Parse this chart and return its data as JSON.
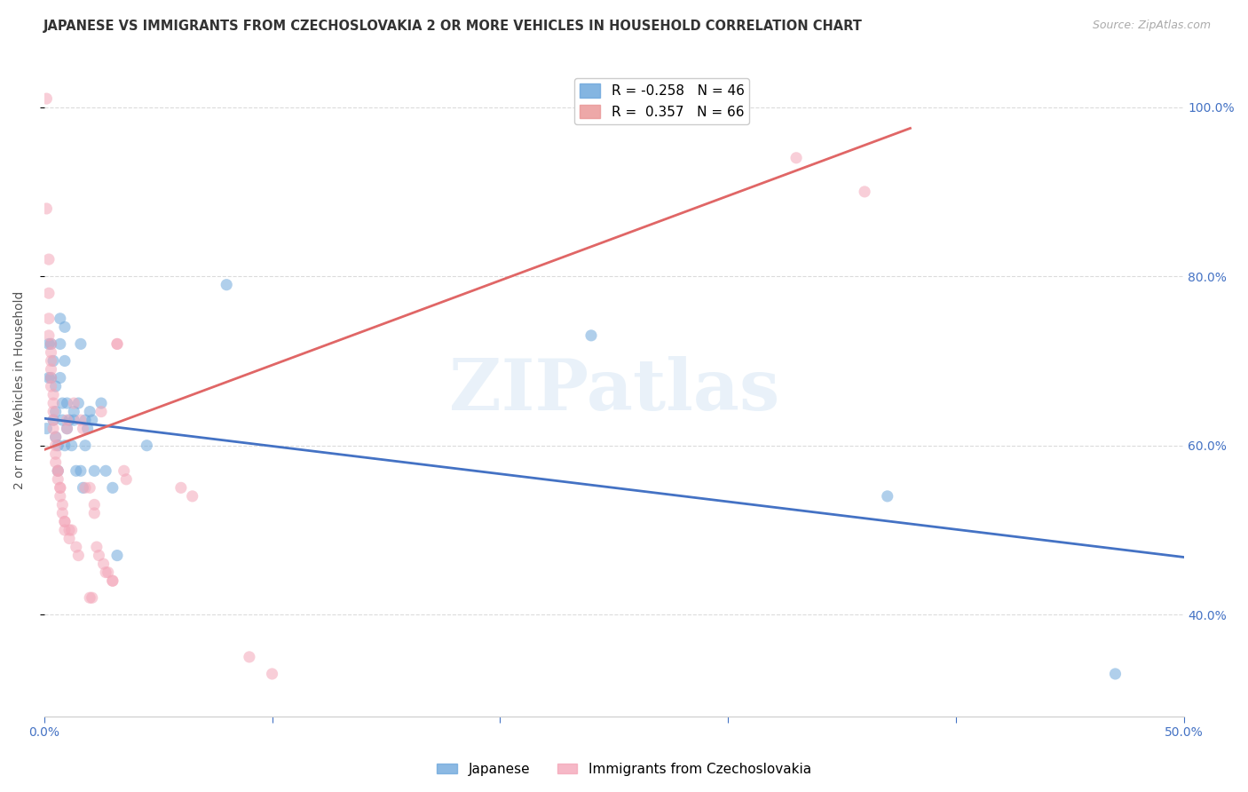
{
  "title": "JAPANESE VS IMMIGRANTS FROM CZECHOSLOVAKIA 2 OR MORE VEHICLES IN HOUSEHOLD CORRELATION CHART",
  "source": "Source: ZipAtlas.com",
  "ylabel": "2 or more Vehicles in Household",
  "ytick_labels": [
    "100.0%",
    "80.0%",
    "60.0%",
    "40.0%"
  ],
  "ytick_values": [
    1.0,
    0.8,
    0.6,
    0.4
  ],
  "xlim": [
    0.0,
    0.5
  ],
  "ylim": [
    0.28,
    1.05
  ],
  "watermark": "ZIPatlas",
  "legend": [
    {
      "label": "R = -0.258   N = 46",
      "color": "#6fa8dc"
    },
    {
      "label": "R =  0.357   N = 66",
      "color": "#ea9999"
    }
  ],
  "blue_line": {
    "x0": 0.0,
    "y0": 0.632,
    "x1": 0.5,
    "y1": 0.468
  },
  "pink_line": {
    "x0": 0.0,
    "y0": 0.595,
    "x1": 0.38,
    "y1": 0.975
  },
  "japanese_points": [
    [
      0.001,
      0.62
    ],
    [
      0.002,
      0.68
    ],
    [
      0.002,
      0.72
    ],
    [
      0.003,
      0.72
    ],
    [
      0.003,
      0.68
    ],
    [
      0.004,
      0.63
    ],
    [
      0.004,
      0.7
    ],
    [
      0.005,
      0.61
    ],
    [
      0.005,
      0.67
    ],
    [
      0.005,
      0.64
    ],
    [
      0.006,
      0.6
    ],
    [
      0.006,
      0.57
    ],
    [
      0.007,
      0.75
    ],
    [
      0.007,
      0.72
    ],
    [
      0.007,
      0.68
    ],
    [
      0.008,
      0.65
    ],
    [
      0.008,
      0.63
    ],
    [
      0.009,
      0.6
    ],
    [
      0.009,
      0.74
    ],
    [
      0.009,
      0.7
    ],
    [
      0.01,
      0.65
    ],
    [
      0.01,
      0.62
    ],
    [
      0.011,
      0.63
    ],
    [
      0.012,
      0.6
    ],
    [
      0.013,
      0.64
    ],
    [
      0.013,
      0.63
    ],
    [
      0.014,
      0.57
    ],
    [
      0.015,
      0.65
    ],
    [
      0.016,
      0.57
    ],
    [
      0.016,
      0.72
    ],
    [
      0.017,
      0.55
    ],
    [
      0.018,
      0.6
    ],
    [
      0.018,
      0.63
    ],
    [
      0.019,
      0.62
    ],
    [
      0.02,
      0.64
    ],
    [
      0.021,
      0.63
    ],
    [
      0.022,
      0.57
    ],
    [
      0.025,
      0.65
    ],
    [
      0.027,
      0.57
    ],
    [
      0.03,
      0.55
    ],
    [
      0.032,
      0.47
    ],
    [
      0.045,
      0.6
    ],
    [
      0.08,
      0.79
    ],
    [
      0.24,
      0.73
    ],
    [
      0.37,
      0.54
    ],
    [
      0.47,
      0.33
    ]
  ],
  "czech_points": [
    [
      0.001,
      1.01
    ],
    [
      0.001,
      0.88
    ],
    [
      0.002,
      0.82
    ],
    [
      0.002,
      0.78
    ],
    [
      0.002,
      0.75
    ],
    [
      0.002,
      0.73
    ],
    [
      0.003,
      0.72
    ],
    [
      0.003,
      0.71
    ],
    [
      0.003,
      0.7
    ],
    [
      0.003,
      0.69
    ],
    [
      0.003,
      0.68
    ],
    [
      0.003,
      0.67
    ],
    [
      0.004,
      0.66
    ],
    [
      0.004,
      0.65
    ],
    [
      0.004,
      0.64
    ],
    [
      0.004,
      0.63
    ],
    [
      0.004,
      0.62
    ],
    [
      0.005,
      0.61
    ],
    [
      0.005,
      0.6
    ],
    [
      0.005,
      0.59
    ],
    [
      0.005,
      0.58
    ],
    [
      0.006,
      0.57
    ],
    [
      0.006,
      0.57
    ],
    [
      0.006,
      0.56
    ],
    [
      0.007,
      0.55
    ],
    [
      0.007,
      0.55
    ],
    [
      0.007,
      0.54
    ],
    [
      0.008,
      0.53
    ],
    [
      0.008,
      0.52
    ],
    [
      0.009,
      0.51
    ],
    [
      0.009,
      0.51
    ],
    [
      0.009,
      0.5
    ],
    [
      0.01,
      0.63
    ],
    [
      0.01,
      0.62
    ],
    [
      0.011,
      0.5
    ],
    [
      0.011,
      0.49
    ],
    [
      0.012,
      0.5
    ],
    [
      0.013,
      0.65
    ],
    [
      0.014,
      0.48
    ],
    [
      0.015,
      0.47
    ],
    [
      0.016,
      0.63
    ],
    [
      0.017,
      0.62
    ],
    [
      0.018,
      0.55
    ],
    [
      0.02,
      0.55
    ],
    [
      0.02,
      0.42
    ],
    [
      0.021,
      0.42
    ],
    [
      0.022,
      0.53
    ],
    [
      0.022,
      0.52
    ],
    [
      0.023,
      0.48
    ],
    [
      0.024,
      0.47
    ],
    [
      0.025,
      0.64
    ],
    [
      0.026,
      0.46
    ],
    [
      0.027,
      0.45
    ],
    [
      0.028,
      0.45
    ],
    [
      0.03,
      0.44
    ],
    [
      0.03,
      0.44
    ],
    [
      0.032,
      0.72
    ],
    [
      0.032,
      0.72
    ],
    [
      0.035,
      0.57
    ],
    [
      0.036,
      0.56
    ],
    [
      0.06,
      0.55
    ],
    [
      0.065,
      0.54
    ],
    [
      0.09,
      0.35
    ],
    [
      0.1,
      0.33
    ],
    [
      0.33,
      0.94
    ],
    [
      0.36,
      0.9
    ]
  ],
  "bg_color": "#ffffff",
  "dot_alpha": 0.55,
  "dot_size": 90,
  "blue_color": "#6fa8dc",
  "pink_color": "#f4a7b9",
  "blue_line_color": "#4472c4",
  "pink_line_color": "#e06666",
  "title_fontsize": 10.5,
  "axis_label_fontsize": 10,
  "tick_fontsize": 10,
  "ytick_color": "#4472c4",
  "xtick_color": "#4472c4",
  "grid_color": "#cccccc",
  "grid_linestyle": "--",
  "grid_alpha": 0.7
}
